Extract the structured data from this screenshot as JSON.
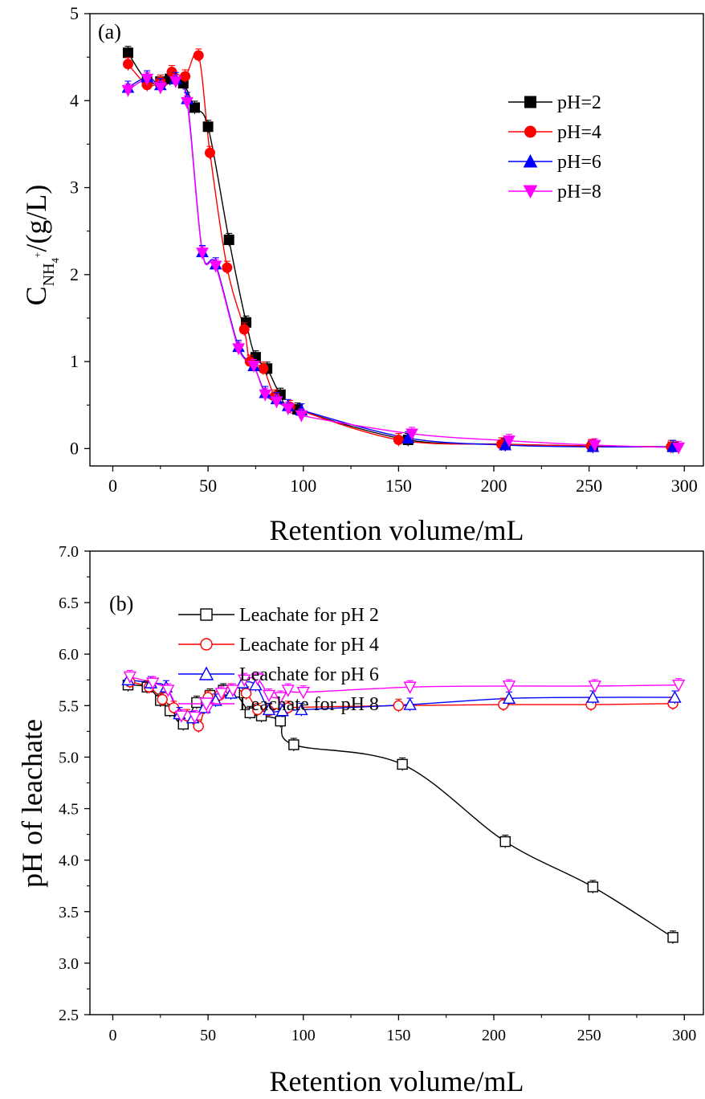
{
  "chart_data": [
    {
      "panel_label": "(a)",
      "type": "line",
      "xlabel": "Retention volume/mL",
      "ylabel_main": "C",
      "ylabel_sub": "NH",
      "ylabel_subsub": "4",
      "ylabel_sup": "+",
      "ylabel_tail": "/(g/L)",
      "xlim": [
        -12,
        310
      ],
      "ylim": [
        -0.2,
        5
      ],
      "x_ticks": [
        "0",
        "50",
        "100",
        "150",
        "200",
        "250",
        "300"
      ],
      "y_ticks": [
        "0",
        "1",
        "2",
        "3",
        "4",
        "5"
      ],
      "legend": "top-right",
      "series": [
        {
          "name": "pH=2",
          "color": "#000000",
          "marker": "square",
          "filled": true,
          "x": [
            8,
            18,
            25,
            30,
            37,
            43,
            50,
            61,
            70,
            75,
            81,
            88,
            97,
            155,
            206,
            252,
            294
          ],
          "y": [
            4.55,
            4.22,
            4.22,
            4.25,
            4.2,
            3.92,
            3.7,
            2.4,
            1.45,
            1.05,
            0.92,
            0.62,
            0.45,
            0.1,
            0.05,
            0.03,
            0.02
          ]
        },
        {
          "name": "pH=4",
          "color": "#ff0000",
          "marker": "circle",
          "filled": true,
          "x": [
            8,
            18,
            25,
            31,
            38,
            45,
            51,
            60,
            69,
            72,
            79,
            85,
            93,
            150,
            204,
            251,
            293
          ],
          "y": [
            4.42,
            4.18,
            4.22,
            4.33,
            4.28,
            4.52,
            3.4,
            2.08,
            1.37,
            1.0,
            0.92,
            0.6,
            0.48,
            0.1,
            0.05,
            0.03,
            0.02
          ]
        },
        {
          "name": "pH=6",
          "color": "#0000ff",
          "marker": "triangle-up",
          "filled": true,
          "x": [
            8,
            18,
            25,
            33,
            39,
            47,
            54,
            66,
            74,
            80,
            86,
            92,
            99,
            155,
            206,
            252,
            294
          ],
          "y": [
            4.15,
            4.27,
            4.18,
            4.25,
            4.02,
            2.26,
            2.12,
            1.17,
            0.95,
            0.64,
            0.57,
            0.49,
            0.44,
            0.12,
            0.04,
            0.02,
            0.02
          ]
        },
        {
          "name": "pH=8",
          "color": "#ff00ff",
          "marker": "triangle-down",
          "filled": true,
          "x": [
            8,
            18,
            25,
            33,
            39,
            47,
            54,
            66,
            74,
            80,
            86,
            92,
            99,
            157,
            208,
            253,
            297
          ],
          "y": [
            4.12,
            4.25,
            4.15,
            4.22,
            3.98,
            2.25,
            2.1,
            1.15,
            0.95,
            0.62,
            0.54,
            0.46,
            0.38,
            0.17,
            0.09,
            0.04,
            0.01
          ]
        }
      ]
    },
    {
      "panel_label": "(b)",
      "type": "line",
      "xlabel": "Retention volume/mL",
      "ylabel": "pH of leachate",
      "xlim": [
        -12,
        310
      ],
      "ylim": [
        2.5,
        7.0
      ],
      "x_ticks": [
        "0",
        "50",
        "100",
        "150",
        "200",
        "250",
        "300"
      ],
      "y_ticks": [
        "2.5",
        "3.0",
        "3.5",
        "4.0",
        "4.5",
        "5.0",
        "5.5",
        "6.0",
        "6.5",
        "7.0"
      ],
      "legend": "center-left",
      "series": [
        {
          "name": "Leachate for pH 2",
          "color": "#000000",
          "marker": "square",
          "filled": false,
          "x": [
            8,
            18,
            25,
            30,
            37,
            44,
            51,
            58,
            64,
            72,
            78,
            88,
            95,
            152,
            206,
            252,
            294
          ],
          "y": [
            5.7,
            5.68,
            5.55,
            5.45,
            5.32,
            5.53,
            5.6,
            5.65,
            5.63,
            5.43,
            5.4,
            5.35,
            5.12,
            4.93,
            4.18,
            3.74,
            3.25
          ]
        },
        {
          "name": "Leachate for pH 4",
          "color": "#ff0000",
          "marker": "circle",
          "filled": false,
          "x": [
            9,
            19,
            26,
            32,
            39,
            45,
            50,
            56,
            62,
            70,
            76,
            82,
            92,
            150,
            205,
            251,
            294
          ],
          "y": [
            5.73,
            5.68,
            5.56,
            5.48,
            5.4,
            5.3,
            5.58,
            5.6,
            5.65,
            5.62,
            5.46,
            5.45,
            5.48,
            5.5,
            5.51,
            5.51,
            5.52
          ]
        },
        {
          "name": "Leachate for pH 6",
          "color": "#0000ff",
          "marker": "triangle-up",
          "filled": false,
          "x": [
            8,
            20,
            28,
            35,
            42,
            48,
            54,
            62,
            68,
            75,
            82,
            89,
            99,
            156,
            208,
            252,
            295
          ],
          "y": [
            5.75,
            5.72,
            5.68,
            5.42,
            5.38,
            5.48,
            5.55,
            5.62,
            5.72,
            5.7,
            5.46,
            5.45,
            5.46,
            5.51,
            5.57,
            5.58,
            5.58
          ]
        },
        {
          "name": "Leachate for pH 8",
          "color": "#ff00ff",
          "marker": "triangle-down",
          "filled": false,
          "x": [
            9,
            21,
            29,
            36,
            43,
            50,
            57,
            63,
            69,
            76,
            82,
            88,
            92,
            100,
            156,
            208,
            253,
            297
          ],
          "y": [
            5.78,
            5.72,
            5.65,
            5.4,
            5.39,
            5.48,
            5.62,
            5.65,
            5.75,
            5.76,
            5.6,
            5.58,
            5.65,
            5.63,
            5.68,
            5.69,
            5.69,
            5.7
          ]
        }
      ]
    }
  ]
}
